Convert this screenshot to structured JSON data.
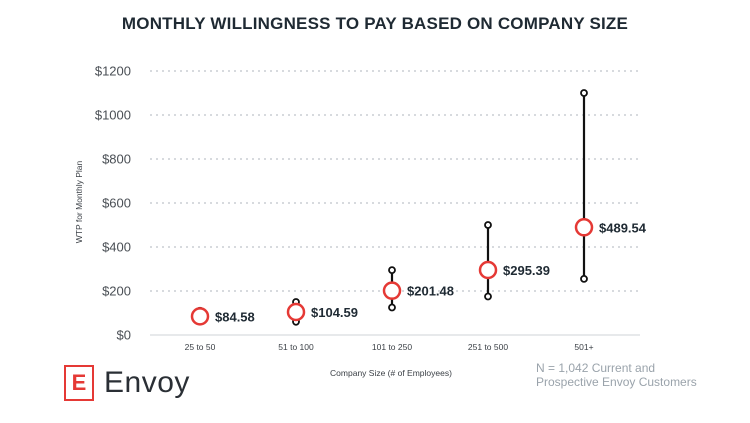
{
  "chart_data": {
    "type": "scatter",
    "title": "MONTHLY WILLINGNESS TO PAY BASED ON COMPANY SIZE",
    "xlabel": "Company Size (# of Employees)",
    "ylabel": "WTP for Monthly Plan",
    "ylim": [
      0,
      1200
    ],
    "yticks": [
      0,
      200,
      400,
      600,
      800,
      1000,
      1200
    ],
    "ytick_labels": [
      "$0",
      "$200",
      "$400",
      "$600",
      "$800",
      "$1000",
      "$1200"
    ],
    "categories": [
      "25 to 50",
      "51 to 100",
      "101 to 250",
      "251 to 500",
      "501+"
    ],
    "means": [
      84.58,
      104.59,
      201.48,
      295.39,
      489.54
    ],
    "mean_labels": [
      "$84.58",
      "$104.59",
      "$201.48",
      "$295.39",
      "$489.54"
    ],
    "ranges": [
      [
        90,
        110
      ],
      [
        60,
        150
      ],
      [
        125,
        295
      ],
      [
        175,
        500
      ],
      [
        255,
        1100
      ]
    ],
    "grid": true,
    "colors": {
      "marker_edge": "#e53935",
      "whisker": "#111111",
      "grid": "#bfc4c9"
    }
  },
  "note": {
    "line1": "N = 1,042 Current and",
    "line2": "Prospective Envoy Customers"
  },
  "logo": {
    "mark": "E",
    "text": "Envoy"
  }
}
